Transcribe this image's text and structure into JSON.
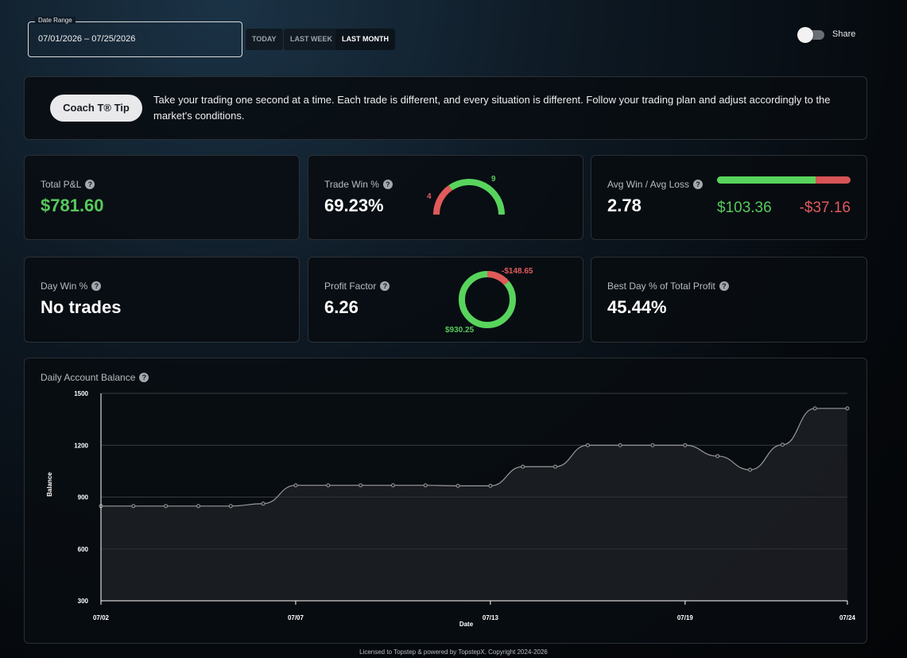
{
  "date_range": {
    "legend": "Date Range",
    "value": "07/01/2026 – 07/25/2026"
  },
  "quick_ranges": [
    {
      "label": "TODAY",
      "active": false
    },
    {
      "label": "LAST WEEK",
      "active": false
    },
    {
      "label": "LAST MONTH",
      "active": true
    }
  ],
  "share": {
    "label": "Share",
    "enabled": false
  },
  "tip": {
    "button_label": "Coach T® Tip",
    "text": "Take your trading one second at a time. Each trade is different, and every situation is different. Follow your trading plan and adjust accordingly to the market's conditions."
  },
  "stats": {
    "total_pnl": {
      "label": "Total P&L",
      "value": "$781.60"
    },
    "trade_win": {
      "label": "Trade Win %",
      "value": "69.23%",
      "losses": "4",
      "wins": "9",
      "win_count": 9,
      "loss_count": 4
    },
    "avg_win_loss": {
      "label": "Avg Win / Avg Loss",
      "value": "2.78",
      "avg_win": "$103.36",
      "avg_loss": "-$37.16",
      "win_amount": 103.36,
      "loss_amount": 37.16
    },
    "day_win": {
      "label": "Day Win %",
      "value": "No trades"
    },
    "profit_factor": {
      "label": "Profit Factor",
      "value": "6.26",
      "gross_loss": "-$148.65",
      "gross_profit": "$930.25",
      "loss_amount": 148.65,
      "profit_amount": 930.25
    },
    "best_day": {
      "label": "Best Day % of Total Profit",
      "value": "45.44%"
    }
  },
  "colors": {
    "green": "#57c95b",
    "red": "#e05a5a",
    "line": "#9a9a9a"
  },
  "chart": {
    "title": "Daily Account Balance"
  },
  "chart_data": {
    "type": "area",
    "xlabel": "Date",
    "ylabel": "Balance",
    "ylim": [
      300,
      1500
    ],
    "yticks": [
      300,
      600,
      900,
      1200,
      1500
    ],
    "x_tick_labels": [
      "07/02",
      "07/07",
      "07/13",
      "07/19",
      "07/24"
    ],
    "x_tick_index": [
      0,
      6,
      12,
      18,
      23
    ],
    "grid": true,
    "values": [
      848,
      848,
      848,
      848,
      848,
      862,
      968,
      968,
      968,
      968,
      968,
      965,
      965,
      1076,
      1076,
      1200,
      1200,
      1200,
      1200,
      1137,
      1058,
      1203,
      1413,
      1413
    ]
  },
  "footer": "Licensed to Topstep & powered by TopstepX. Copyright 2024-2026"
}
